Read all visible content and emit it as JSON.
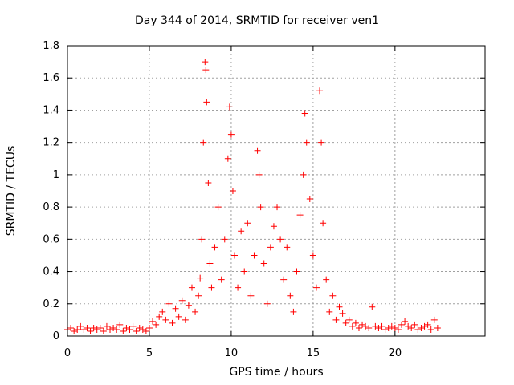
{
  "chart_data": {
    "type": "scatter",
    "title": "Day 344 of 2014, SRMTID for receiver ven1",
    "xlabel": "GPS time / hours",
    "ylabel": "SRMTID / TECUs",
    "xlim": [
      0,
      25.5
    ],
    "ylim": [
      0,
      1.8
    ],
    "xticks": [
      0,
      5,
      10,
      15,
      20
    ],
    "yticks": [
      0,
      0.2,
      0.4,
      0.6,
      0.8,
      1,
      1.2,
      1.4,
      1.6,
      1.8
    ],
    "grid": true,
    "marker": "+",
    "color": "#ff0000",
    "series": [
      {
        "name": "SRMTID",
        "points": [
          [
            0.0,
            0.04
          ],
          [
            0.2,
            0.05
          ],
          [
            0.4,
            0.03
          ],
          [
            0.6,
            0.04
          ],
          [
            0.8,
            0.06
          ],
          [
            1.0,
            0.04
          ],
          [
            1.2,
            0.05
          ],
          [
            1.4,
            0.03
          ],
          [
            1.6,
            0.05
          ],
          [
            1.8,
            0.04
          ],
          [
            2.0,
            0.05
          ],
          [
            2.2,
            0.03
          ],
          [
            2.4,
            0.06
          ],
          [
            2.6,
            0.04
          ],
          [
            2.8,
            0.05
          ],
          [
            3.0,
            0.04
          ],
          [
            3.2,
            0.07
          ],
          [
            3.4,
            0.03
          ],
          [
            3.6,
            0.05
          ],
          [
            3.8,
            0.04
          ],
          [
            4.0,
            0.06
          ],
          [
            4.2,
            0.03
          ],
          [
            4.4,
            0.05
          ],
          [
            4.6,
            0.04
          ],
          [
            4.8,
            0.03
          ],
          [
            5.0,
            0.05
          ],
          [
            5.2,
            0.09
          ],
          [
            5.4,
            0.07
          ],
          [
            5.6,
            0.12
          ],
          [
            5.8,
            0.15
          ],
          [
            6.0,
            0.1
          ],
          [
            6.2,
            0.2
          ],
          [
            6.4,
            0.08
          ],
          [
            6.6,
            0.17
          ],
          [
            6.8,
            0.12
          ],
          [
            7.0,
            0.22
          ],
          [
            7.2,
            0.1
          ],
          [
            7.4,
            0.19
          ],
          [
            7.6,
            0.3
          ],
          [
            7.8,
            0.15
          ],
          [
            8.0,
            0.25
          ],
          [
            8.1,
            0.36
          ],
          [
            8.2,
            0.6
          ],
          [
            8.3,
            1.2
          ],
          [
            8.4,
            1.7
          ],
          [
            8.45,
            1.65
          ],
          [
            8.5,
            1.45
          ],
          [
            8.6,
            0.95
          ],
          [
            8.7,
            0.45
          ],
          [
            8.8,
            0.3
          ],
          [
            9.0,
            0.55
          ],
          [
            9.2,
            0.8
          ],
          [
            9.4,
            0.35
          ],
          [
            9.6,
            0.6
          ],
          [
            9.8,
            1.1
          ],
          [
            9.9,
            1.42
          ],
          [
            10.0,
            1.25
          ],
          [
            10.1,
            0.9
          ],
          [
            10.2,
            0.5
          ],
          [
            10.4,
            0.3
          ],
          [
            10.6,
            0.65
          ],
          [
            10.8,
            0.4
          ],
          [
            11.0,
            0.7
          ],
          [
            11.2,
            0.25
          ],
          [
            11.4,
            0.5
          ],
          [
            11.6,
            1.15
          ],
          [
            11.7,
            1.0
          ],
          [
            11.8,
            0.8
          ],
          [
            12.0,
            0.45
          ],
          [
            12.2,
            0.2
          ],
          [
            12.4,
            0.55
          ],
          [
            12.6,
            0.68
          ],
          [
            12.8,
            0.8
          ],
          [
            13.0,
            0.6
          ],
          [
            13.2,
            0.35
          ],
          [
            13.4,
            0.55
          ],
          [
            13.6,
            0.25
          ],
          [
            13.8,
            0.15
          ],
          [
            14.0,
            0.4
          ],
          [
            14.2,
            0.75
          ],
          [
            14.4,
            1.0
          ],
          [
            14.5,
            1.38
          ],
          [
            14.6,
            1.2
          ],
          [
            14.8,
            0.85
          ],
          [
            15.0,
            0.5
          ],
          [
            15.2,
            0.3
          ],
          [
            15.4,
            1.52
          ],
          [
            15.5,
            1.2
          ],
          [
            15.6,
            0.7
          ],
          [
            15.8,
            0.35
          ],
          [
            16.0,
            0.15
          ],
          [
            16.2,
            0.25
          ],
          [
            16.4,
            0.1
          ],
          [
            16.6,
            0.18
          ],
          [
            16.8,
            0.14
          ],
          [
            17.0,
            0.08
          ],
          [
            17.2,
            0.1
          ],
          [
            17.4,
            0.06
          ],
          [
            17.6,
            0.08
          ],
          [
            17.8,
            0.05
          ],
          [
            18.0,
            0.07
          ],
          [
            18.2,
            0.06
          ],
          [
            18.4,
            0.05
          ],
          [
            18.6,
            0.18
          ],
          [
            18.8,
            0.06
          ],
          [
            19.0,
            0.05
          ],
          [
            19.2,
            0.06
          ],
          [
            19.4,
            0.04
          ],
          [
            19.6,
            0.05
          ],
          [
            19.8,
            0.06
          ],
          [
            20.0,
            0.05
          ],
          [
            20.2,
            0.04
          ],
          [
            20.4,
            0.07
          ],
          [
            20.6,
            0.09
          ],
          [
            20.8,
            0.06
          ],
          [
            21.0,
            0.05
          ],
          [
            21.2,
            0.07
          ],
          [
            21.4,
            0.04
          ],
          [
            21.6,
            0.05
          ],
          [
            21.8,
            0.06
          ],
          [
            22.0,
            0.07
          ],
          [
            22.2,
            0.04
          ],
          [
            22.4,
            0.1
          ],
          [
            22.6,
            0.05
          ]
        ]
      }
    ]
  }
}
